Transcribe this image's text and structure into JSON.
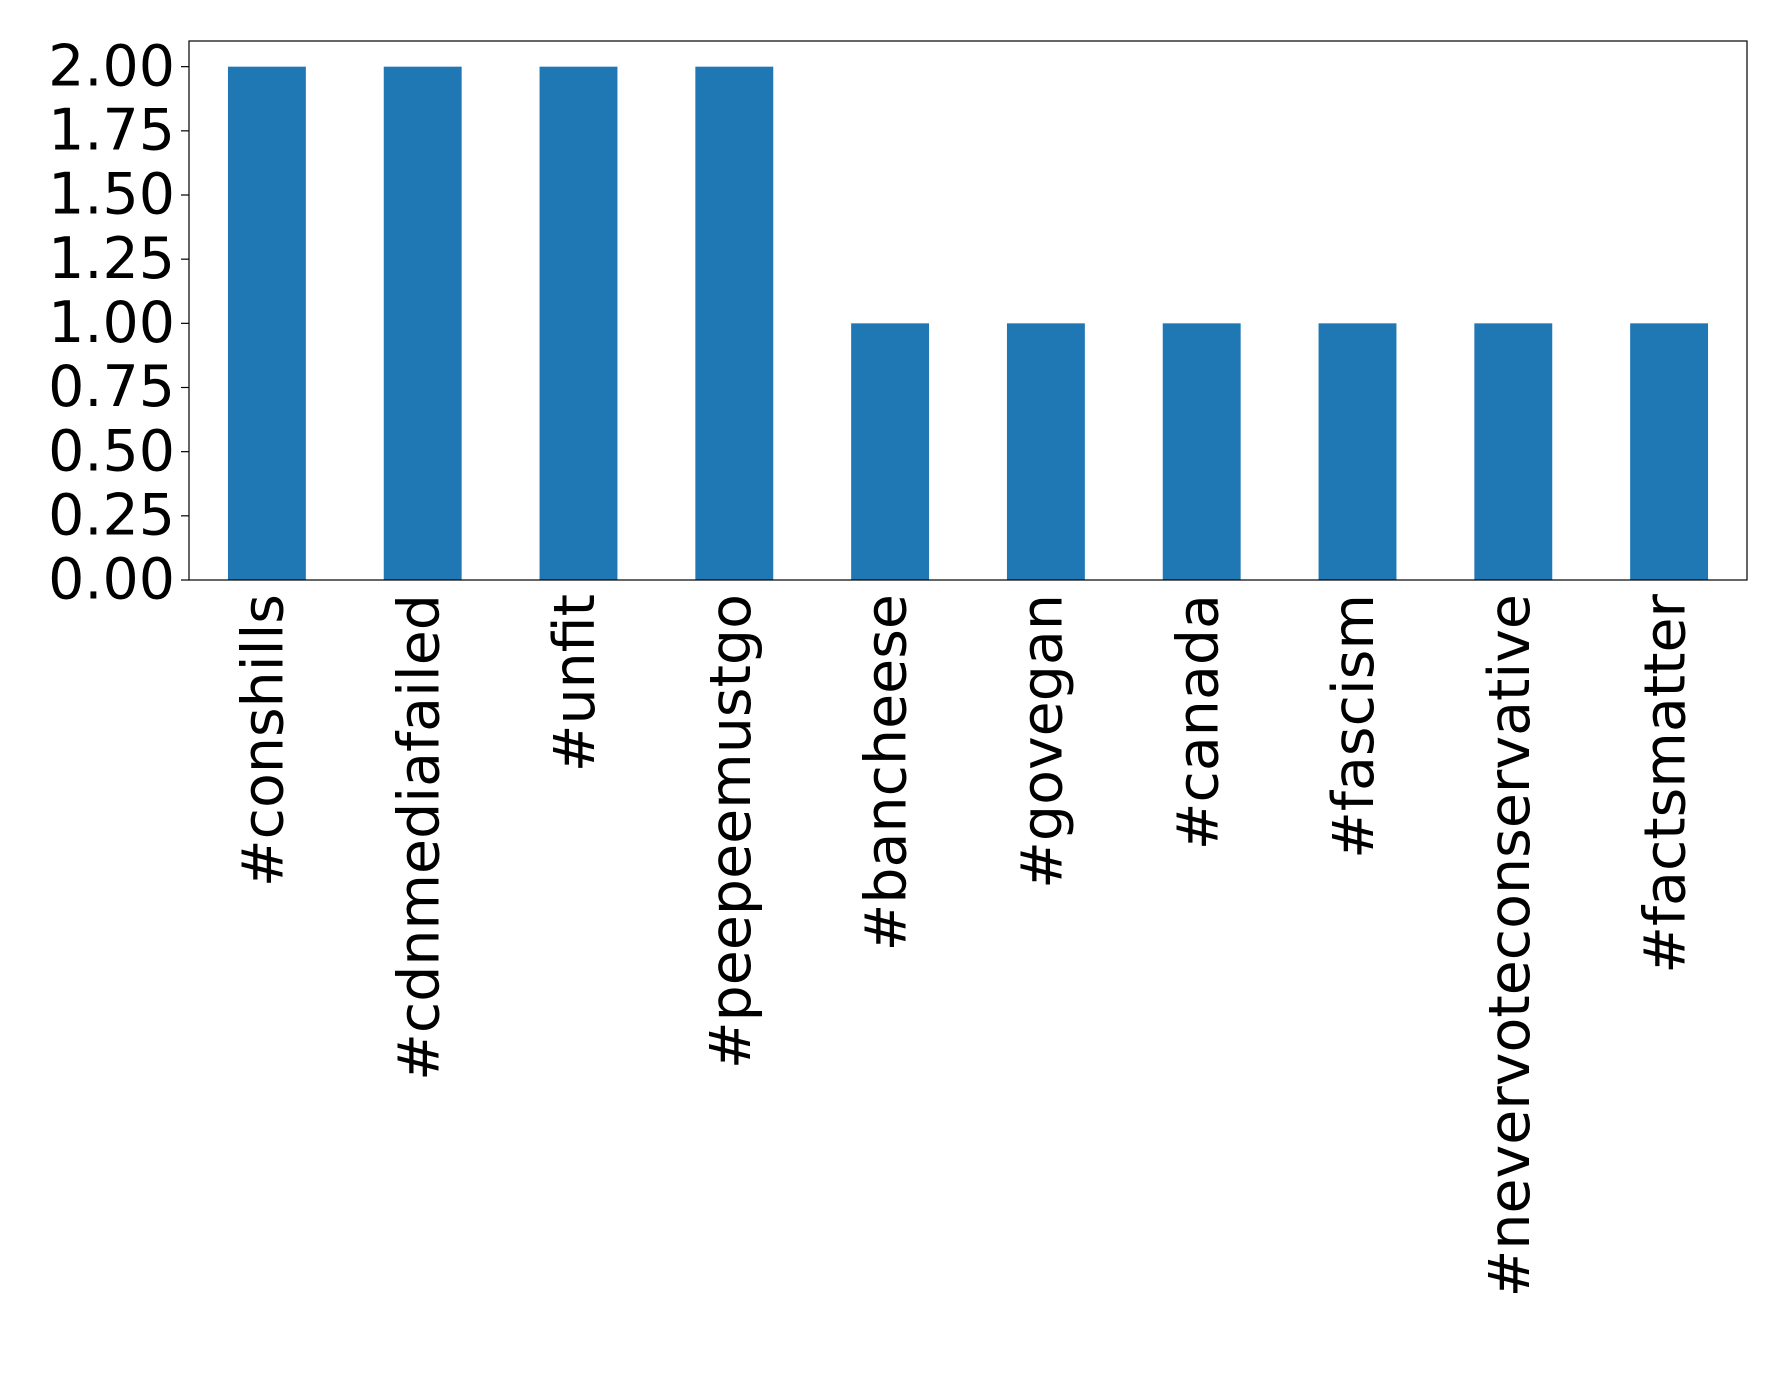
{
  "chart_data": {
    "type": "bar",
    "categories": [
      "#conshills",
      "#cdnmediafailed",
      "#unfit",
      "#peepeemustgo",
      "#bancheese",
      "#govegan",
      "#canada",
      "#fascism",
      "#nevervoteconservative",
      "#factsmatter"
    ],
    "values": [
      2,
      2,
      2,
      2,
      1,
      1,
      1,
      1,
      1,
      1
    ],
    "color": "#1f77b4",
    "ylim": [
      0,
      2.1
    ],
    "yticks": [
      {
        "value": 0,
        "label": "0.00"
      },
      {
        "value": 0.25,
        "label": "0.25"
      },
      {
        "value": 0.5,
        "label": "0.50"
      },
      {
        "value": 0.75,
        "label": "0.75"
      },
      {
        "value": 1,
        "label": "1.00"
      },
      {
        "value": 1.25,
        "label": "1.25"
      },
      {
        "value": 1.5,
        "label": "1.50"
      },
      {
        "value": 1.75,
        "label": "1.75"
      },
      {
        "value": 2,
        "label": "2.00"
      }
    ],
    "grid": false
  }
}
